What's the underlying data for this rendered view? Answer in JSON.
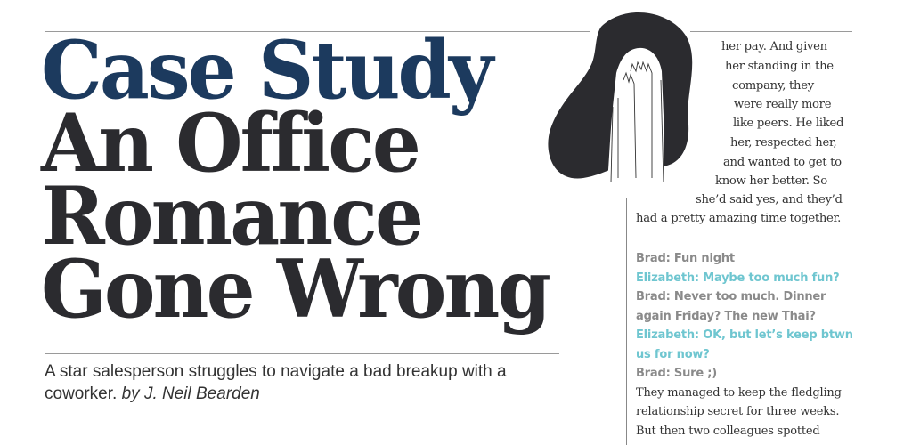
{
  "title": {
    "line1": "Case Study",
    "line2": "An Office",
    "line3": "Romance",
    "line4": "Gone Wrong"
  },
  "dek": {
    "text": "A star salesperson struggles to navigate a bad breakup with a coworker.",
    "byline": "by J. Neil Bearden"
  },
  "illustration": "woman-covering-face-with-hands",
  "wrap_lines": [
    "her pay. And given",
    "her standing in the",
    "company, they",
    "were really more",
    "like peers. He liked",
    "her, respected her,",
    "and wanted to get to",
    "know her better. So",
    "she’d said yes, and they’d",
    "had a pretty amazing time together."
  ],
  "chat": [
    {
      "speaker": "brad",
      "text": "Brad: Fun night"
    },
    {
      "speaker": "elizabeth",
      "text": "Elizabeth: Maybe too much fun?"
    },
    {
      "speaker": "brad",
      "text": "Brad: Never too much. Dinner"
    },
    {
      "speaker": "brad",
      "text": "again Friday? The new Thai?"
    },
    {
      "speaker": "elizabeth",
      "text": "Elizabeth: OK, but let’s keep btwn"
    },
    {
      "speaker": "elizabeth",
      "text": "us for now?"
    },
    {
      "speaker": "brad",
      "text": "Brad: Sure ;)"
    }
  ],
  "paragraph": [
    "They managed to keep the fledgling",
    "relationship secret for three weeks.",
    "But then two colleagues spotted"
  ],
  "colors": {
    "title_accent": "#1c3a5e",
    "title": "#2b2b2f",
    "elizabeth": "#6fc6d0",
    "brad": "#8a8a8a"
  }
}
